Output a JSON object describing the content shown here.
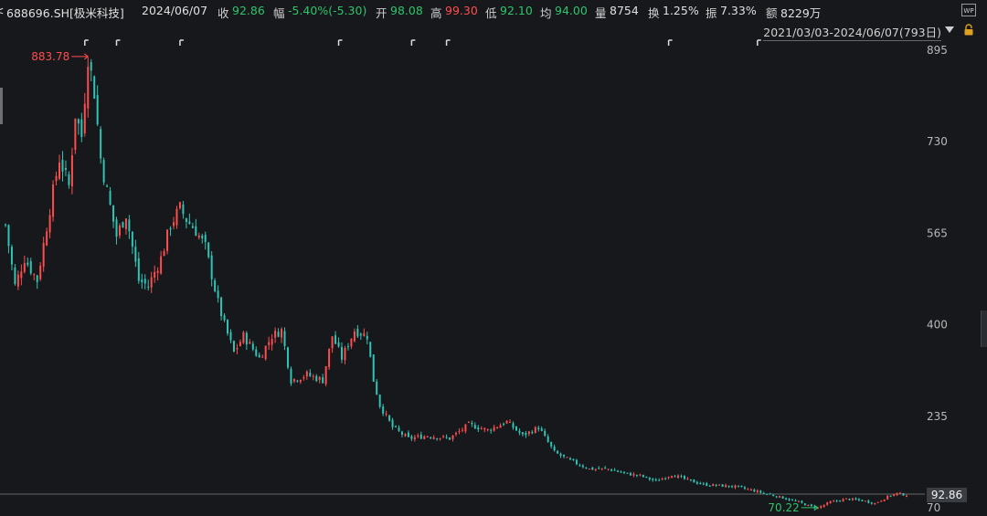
{
  "header": {
    "code_prefix": "<",
    "code": "688696.SH[极米科技]",
    "date": "2024/06/07",
    "close_label": "收",
    "close": "92.86",
    "chg_label": "幅",
    "chg": "-5.40%(-5.30)",
    "open_label": "开",
    "open": "98.08",
    "high_label": "高",
    "high": "99.30",
    "low_label": "低",
    "low": "92.10",
    "avg_label": "均",
    "avg": "94.00",
    "vol_label": "量",
    "vol": "8754",
    "turn_label": "换",
    "turn": "1.25%",
    "amp_label": "振",
    "amp": "7.33%",
    "amt_label": "额",
    "amt": "8229万"
  },
  "range_text": "2021/03/03-2024/06/07(793日)",
  "icons": {
    "wp": "WP",
    "lock": "lock-icon",
    "dropdown": "triangle-down-icon"
  },
  "colors": {
    "up": "#ff4d4d",
    "down": "#2fc4b4",
    "background": "#16181c",
    "grid": "#555555"
  },
  "chart_data": {
    "type": "candlestick",
    "x_range": [
      "2021/03/03",
      "2024/06/07"
    ],
    "trading_days": 793,
    "yticks": [
      895,
      730,
      565,
      400,
      235,
      70
    ],
    "ylim": [
      70,
      895
    ],
    "last_price": "92.86",
    "max_label": "883.78",
    "min_label": "70.22",
    "max_value": 883.78,
    "min_value": 70.22,
    "path": [
      [
        0,
        580
      ],
      [
        3,
        470
      ],
      [
        6,
        520
      ],
      [
        10,
        480
      ],
      [
        14,
        610
      ],
      [
        17,
        700
      ],
      [
        20,
        650
      ],
      [
        22,
        780
      ],
      [
        24,
        740
      ],
      [
        26,
        884
      ],
      [
        28,
        820
      ],
      [
        30,
        700
      ],
      [
        32,
        640
      ],
      [
        35,
        560
      ],
      [
        38,
        600
      ],
      [
        42,
        480
      ],
      [
        45,
        470
      ],
      [
        49,
        520
      ],
      [
        52,
        580
      ],
      [
        55,
        610
      ],
      [
        57,
        590
      ],
      [
        60,
        570
      ],
      [
        63,
        540
      ],
      [
        67,
        440
      ],
      [
        69,
        400
      ],
      [
        72,
        350
      ],
      [
        75,
        380
      ],
      [
        80,
        340
      ],
      [
        84,
        380
      ],
      [
        87,
        390
      ],
      [
        90,
        300
      ],
      [
        95,
        310
      ],
      [
        100,
        300
      ],
      [
        103,
        380
      ],
      [
        106,
        340
      ],
      [
        110,
        390
      ],
      [
        114,
        380
      ],
      [
        116,
        300
      ],
      [
        118,
        255
      ],
      [
        122,
        215
      ],
      [
        127,
        195
      ],
      [
        133,
        200
      ],
      [
        140,
        195
      ],
      [
        146,
        220
      ],
      [
        152,
        210
      ],
      [
        158,
        225
      ],
      [
        163,
        200
      ],
      [
        168,
        215
      ],
      [
        173,
        170
      ],
      [
        178,
        155
      ],
      [
        184,
        140
      ],
      [
        190,
        140
      ],
      [
        195,
        132
      ],
      [
        200,
        128
      ],
      [
        205,
        118
      ],
      [
        210,
        130
      ],
      [
        215,
        120
      ],
      [
        220,
        112
      ],
      [
        225,
        110
      ],
      [
        230,
        108
      ],
      [
        235,
        102
      ],
      [
        240,
        95
      ],
      [
        245,
        88
      ],
      [
        250,
        80
      ],
      [
        254,
        72
      ],
      [
        256,
        70.22
      ],
      [
        260,
        80
      ],
      [
        265,
        86
      ],
      [
        270,
        83
      ],
      [
        274,
        78
      ],
      [
        278,
        90
      ],
      [
        281,
        96
      ],
      [
        284,
        92.86
      ]
    ],
    "markers_x": [
      25,
      35,
      55,
      105,
      128,
      139,
      209,
      237
    ]
  }
}
